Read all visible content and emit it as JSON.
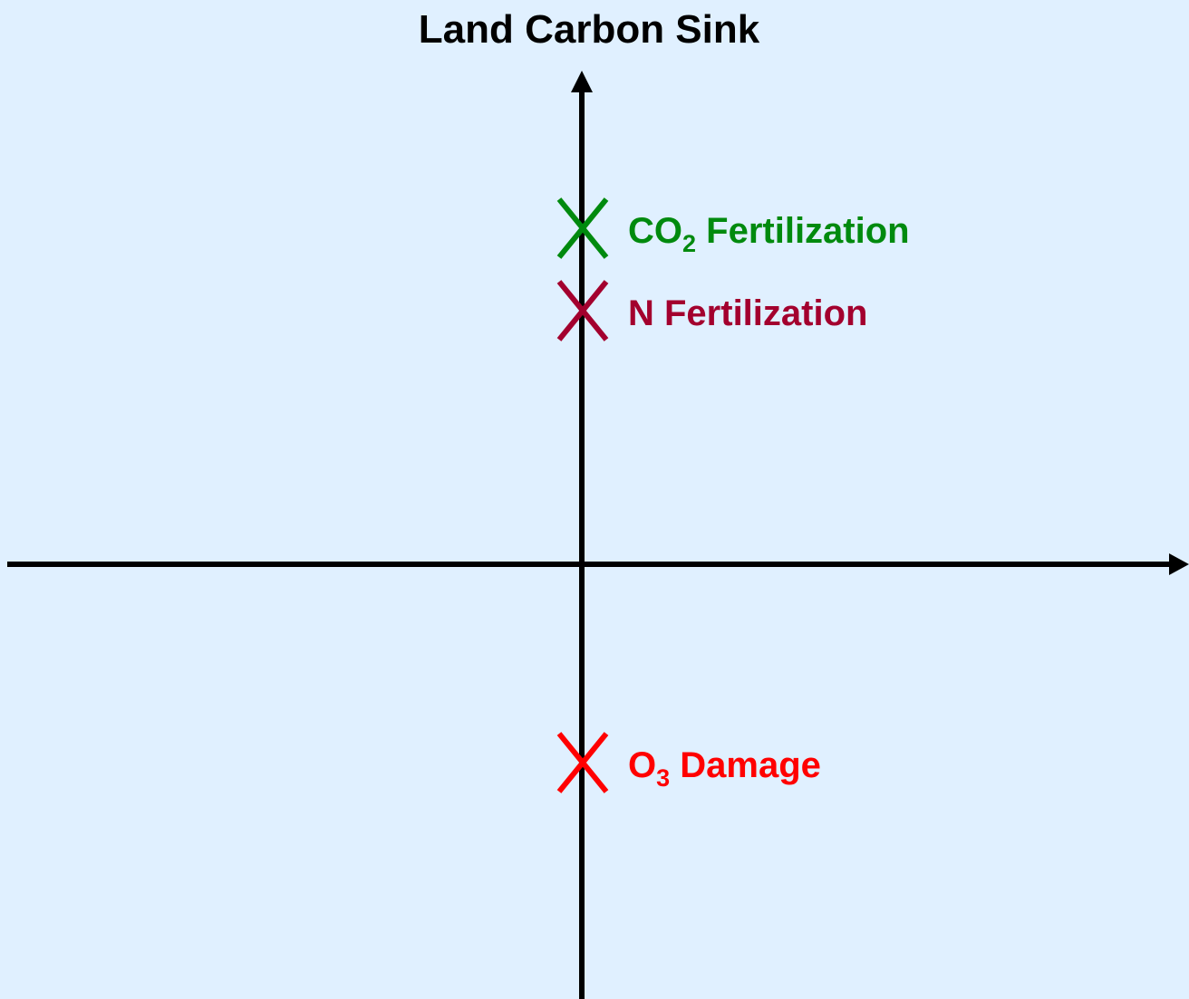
{
  "title": "Land Carbon Sink",
  "markers": [
    {
      "label": "CO",
      "subscript": "2",
      "suffix": " Fertilization",
      "color": "#008a0e"
    },
    {
      "label": "N Fertilization",
      "color": "#a3002e"
    },
    {
      "label": "O",
      "subscript": "3",
      "suffix": " Damage",
      "color": "#ff0000"
    }
  ]
}
